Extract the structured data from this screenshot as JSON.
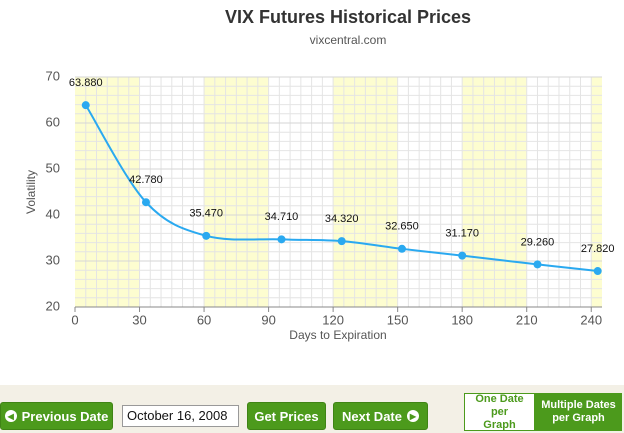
{
  "chart_data": {
    "type": "line",
    "title": "VIX Futures Historical Prices",
    "subtitle": "vixcentral.com",
    "x_label": "Days to Expiration",
    "y_label": "Volatility",
    "x": [
      5,
      33,
      61,
      96,
      124,
      152,
      180,
      215,
      243
    ],
    "series": [
      {
        "name": "October 16, 2008",
        "color": "#2aa9f0",
        "values": [
          63.88,
          42.78,
          35.47,
          34.71,
          34.32,
          32.65,
          31.17,
          29.26,
          27.82
        ],
        "value_labels": [
          "63.880",
          "42.780",
          "35.470",
          "34.710",
          "34.320",
          "32.650",
          "31.170",
          "29.260",
          "27.820"
        ]
      }
    ],
    "xlim": [
      0,
      245
    ],
    "xticks": [
      0,
      30,
      60,
      90,
      120,
      150,
      180,
      210,
      240
    ],
    "ylim": [
      20,
      70
    ],
    "yticks": [
      20,
      30,
      40,
      50,
      60,
      70
    ],
    "grid": true
  },
  "controls": {
    "previous": "Previous Date",
    "date": "October 16, 2008",
    "get": "Get Prices",
    "next": "Next Date",
    "one_date": "One Date per Graph",
    "multiple_dates": "Multiple Dates per Graph"
  }
}
